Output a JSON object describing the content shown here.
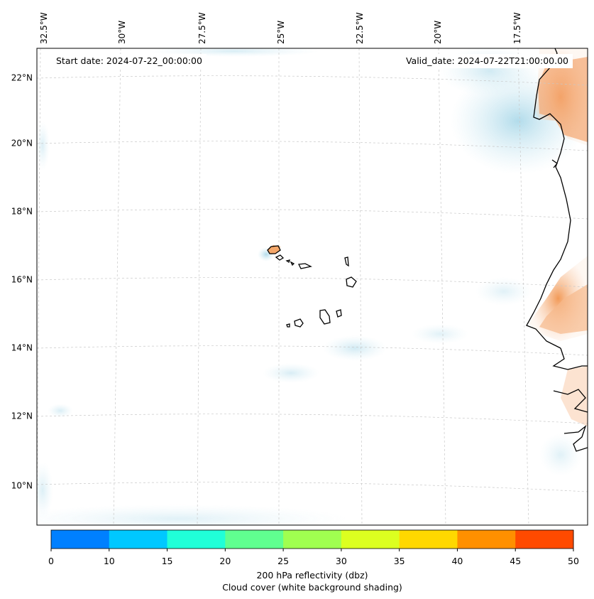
{
  "map": {
    "start_date": "Start date: 2024-07-22_00:00:00",
    "valid_date": "Valid_date: 2024-07-22T21:00:00.00",
    "lat_labels": [
      "22°N",
      "20°N",
      "18°N",
      "16°N",
      "14°N",
      "12°N",
      "10°N"
    ],
    "lon_labels": [
      "32.5°W",
      "30°W",
      "27.5°W",
      "25°W",
      "22.5°W",
      "20°W",
      "17.5°W"
    ],
    "land_color": "#f4a76a",
    "cloud_color": "#a9d8e8",
    "region": "Cape Verde Islands and West African coast"
  },
  "colorbar": {
    "ticks": [
      "0",
      "10",
      "15",
      "20",
      "25",
      "30",
      "35",
      "40",
      "45",
      "50"
    ],
    "colors": [
      "#0080ff",
      "#00c8ff",
      "#20ffd8",
      "#60ff90",
      "#a0ff50",
      "#dcff20",
      "#ffd800",
      "#ff9000",
      "#ff4a00"
    ],
    "title_line1": "200 hPa reflectivity (dbz)",
    "title_line2": "Cloud cover (white background shading)"
  }
}
